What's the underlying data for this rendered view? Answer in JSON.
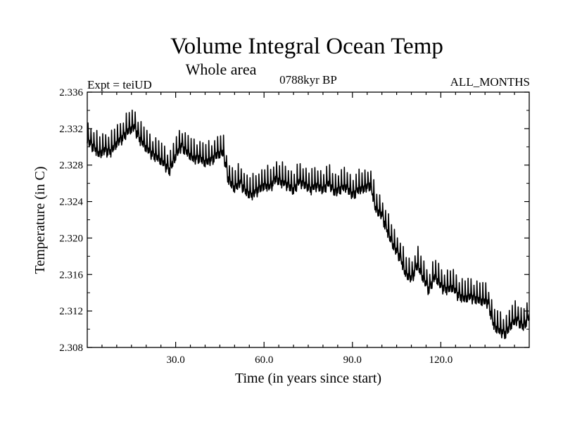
{
  "chart_data": {
    "type": "line",
    "title": "Volume Integral Ocean Temp",
    "subtitle": "Whole area",
    "header_left": "Expt = teiUD",
    "header_center": "0788kyr BP",
    "header_right": "ALL_MONTHS",
    "xlabel": "Time (in years since start)",
    "ylabel": "Temperature (in C)",
    "xlim": [
      0,
      150
    ],
    "ylim": [
      2.308,
      2.336
    ],
    "x_ticks": [
      30,
      60,
      90,
      120
    ],
    "x_tick_labels": [
      "30.0",
      "60.0",
      "90.0",
      "120.0"
    ],
    "y_ticks": [
      2.308,
      2.312,
      2.316,
      2.32,
      2.324,
      2.328,
      2.332,
      2.336
    ],
    "y_tick_labels": [
      "2.308",
      "2.312",
      "2.316",
      "2.320",
      "2.324",
      "2.328",
      "2.332",
      "2.336"
    ],
    "series": [
      {
        "name": "Volume integral ocean temperature",
        "color": "#000000",
        "seasonal_amplitude": 0.0009,
        "x": [
          0,
          2,
          4,
          6,
          8,
          10,
          12,
          14,
          16,
          18,
          20,
          22,
          24,
          26,
          28,
          30,
          32,
          34,
          36,
          38,
          40,
          42,
          44,
          46,
          48,
          50,
          52,
          54,
          56,
          58,
          60,
          62,
          64,
          66,
          68,
          70,
          72,
          74,
          76,
          78,
          80,
          82,
          84,
          86,
          88,
          90,
          92,
          94,
          96,
          98,
          100,
          102,
          104,
          106,
          108,
          110,
          112,
          114,
          116,
          118,
          120,
          122,
          124,
          126,
          128,
          130,
          132,
          134,
          136,
          138,
          140,
          142,
          144,
          146,
          148,
          150
        ],
        "values": [
          2.3312,
          2.3305,
          2.3296,
          2.3301,
          2.3299,
          2.3308,
          2.3315,
          2.3322,
          2.3326,
          2.3312,
          2.3303,
          2.3297,
          2.3292,
          2.3286,
          2.3279,
          2.3294,
          2.3306,
          2.3298,
          2.3291,
          2.3293,
          2.3287,
          2.329,
          2.3296,
          2.3298,
          2.3268,
          2.3259,
          2.3265,
          2.3255,
          2.3251,
          2.3258,
          2.3262,
          2.326,
          2.327,
          2.3265,
          2.3263,
          2.3257,
          2.3266,
          2.3263,
          2.3258,
          2.3262,
          2.3258,
          2.3264,
          2.3255,
          2.3259,
          2.326,
          2.3252,
          2.3257,
          2.3259,
          2.3263,
          2.3235,
          2.323,
          2.321,
          2.3195,
          2.3185,
          2.3165,
          2.316,
          2.3175,
          2.316,
          2.3148,
          2.3162,
          2.3152,
          2.3148,
          2.315,
          2.3142,
          2.3138,
          2.314,
          2.3138,
          2.3135,
          2.3134,
          2.3108,
          2.3102,
          2.31,
          2.311,
          2.3115,
          2.3107,
          2.3118
        ]
      }
    ]
  }
}
